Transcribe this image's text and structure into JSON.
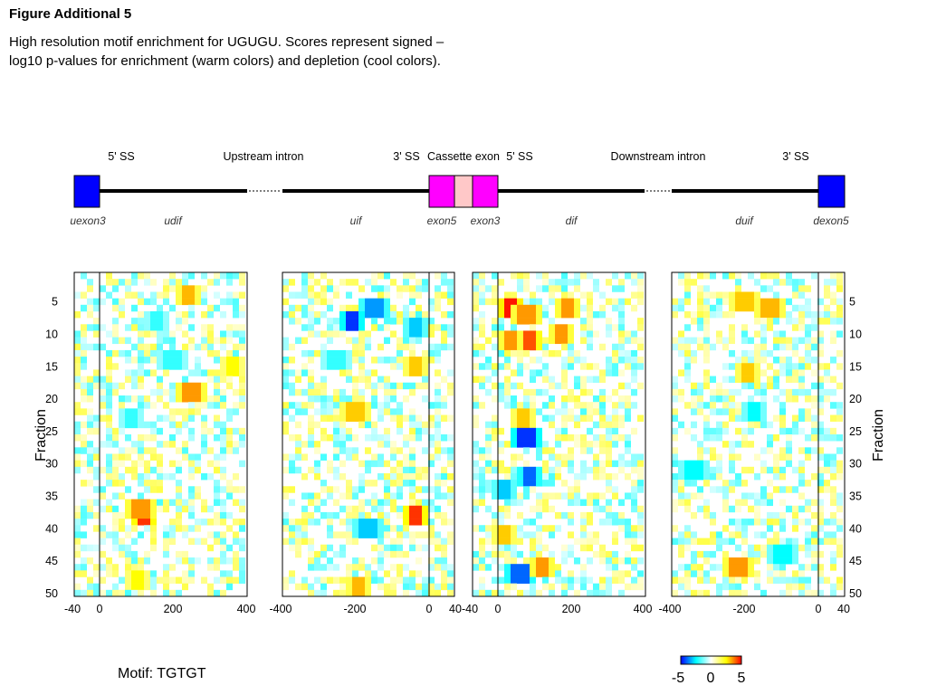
{
  "figure": {
    "title": "Figure Additional 5",
    "caption": "High resolution motif enrichment for UGUGU. Scores represent signed –log10 p-values for enrichment (warm colors) and depletion (cool colors).",
    "motif": "Motif: TGTGT"
  },
  "gene_diagram": {
    "region_labels": [
      "5' SS",
      "Upstream intron",
      "3' SS",
      "Cassette exon",
      "5' SS",
      "Downstream intron",
      "3' SS"
    ],
    "segment_labels": [
      "uexon3",
      "udif",
      "uif",
      "exon5",
      "exon3",
      "dif",
      "duif",
      "dexon5"
    ],
    "colors": {
      "flank_exon": "#0000ff",
      "cassette_exon": "#ff00ff",
      "cassette_core": "#ffc8c8",
      "intron": "#000000"
    }
  },
  "chart_data": {
    "type": "heatmap",
    "ylabel": "Fraction",
    "y_ticks": [
      5,
      10,
      15,
      20,
      25,
      30,
      35,
      40,
      45,
      50
    ],
    "ylim": [
      1,
      50
    ],
    "colorscale": {
      "range": [
        -5,
        5
      ],
      "ticks": [
        "-5",
        "0",
        "5"
      ],
      "colors": [
        "#0000ff",
        "#00ffff",
        "#ffffff",
        "#ffff00",
        "#ff0000"
      ]
    },
    "panels": [
      {
        "x_ticks": [
          "-40",
          "0",
          "200",
          "400"
        ],
        "hotspots": [
          {
            "x": 120,
            "y": 38,
            "value": 4.5
          },
          {
            "x": 110,
            "y": 37,
            "value": 3.5
          },
          {
            "x": 240,
            "y": 4,
            "value": 3.2
          },
          {
            "x": 250,
            "y": 19,
            "value": 3.5
          },
          {
            "x": 100,
            "y": 48,
            "value": 2.5
          },
          {
            "x": 150,
            "y": 8,
            "value": -2.0
          },
          {
            "x": 90,
            "y": 23,
            "value": -2.0
          },
          {
            "x": 200,
            "y": 14,
            "value": -2.0
          },
          {
            "x": 360,
            "y": 15,
            "value": 2.5
          }
        ]
      },
      {
        "x_ticks": [
          "-400",
          "-200",
          "0",
          "40"
        ],
        "hotspots": [
          {
            "x": -150,
            "y": 6,
            "value": -3.5
          },
          {
            "x": -210,
            "y": 8,
            "value": -4.5
          },
          {
            "x": -40,
            "y": 38,
            "value": 4.5
          },
          {
            "x": -200,
            "y": 22,
            "value": 3.0
          },
          {
            "x": -195,
            "y": 49,
            "value": 3.2
          },
          {
            "x": -170,
            "y": 40,
            "value": -3.0
          },
          {
            "x": -40,
            "y": 9,
            "value": -3.0
          },
          {
            "x": -40,
            "y": 15,
            "value": 3.0
          },
          {
            "x": -250,
            "y": 14,
            "value": -2.0
          }
        ]
      },
      {
        "x_ticks": [
          "-40",
          "0",
          "200",
          "400"
        ],
        "hotspots": [
          {
            "x": 30,
            "y": 6,
            "value": 4.8
          },
          {
            "x": 75,
            "y": 7,
            "value": 3.5
          },
          {
            "x": 75,
            "y": 11,
            "value": 4.2
          },
          {
            "x": 30,
            "y": 11,
            "value": 3.5
          },
          {
            "x": 170,
            "y": 10,
            "value": 3.5
          },
          {
            "x": 190,
            "y": 6,
            "value": 3.5
          },
          {
            "x": 75,
            "y": 26,
            "value": -4.5
          },
          {
            "x": 85,
            "y": 32,
            "value": -4.0
          },
          {
            "x": 60,
            "y": 47,
            "value": -4.0
          },
          {
            "x": 120,
            "y": 46,
            "value": 3.5
          },
          {
            "x": 20,
            "y": 34,
            "value": -3.0
          },
          {
            "x": 70,
            "y": 23,
            "value": 3.0
          },
          {
            "x": 20,
            "y": 41,
            "value": 3.0
          }
        ]
      },
      {
        "x_ticks": [
          "-400",
          "-200",
          "0",
          "40"
        ],
        "hotspots": [
          {
            "x": -220,
            "y": 46,
            "value": 3.5
          },
          {
            "x": -200,
            "y": 5,
            "value": 3.0
          },
          {
            "x": -130,
            "y": 6,
            "value": 3.2
          },
          {
            "x": -190,
            "y": 16,
            "value": 3.0
          },
          {
            "x": -180,
            "y": 22,
            "value": -2.5
          },
          {
            "x": -340,
            "y": 31,
            "value": -2.5
          },
          {
            "x": -100,
            "y": 44,
            "value": -2.5
          }
        ]
      }
    ]
  }
}
